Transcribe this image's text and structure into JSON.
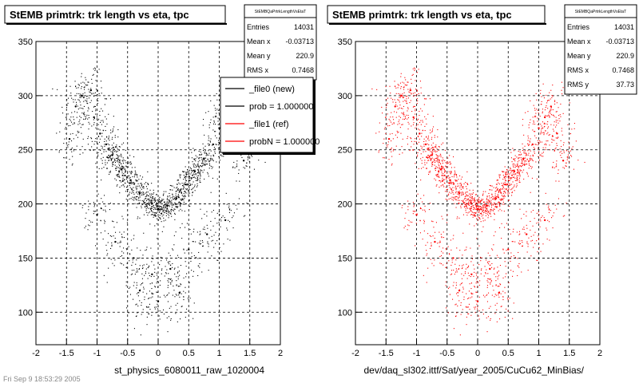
{
  "footer_stamp": "Fri Sep  9 18:53:29 2005",
  "chart_data": [
    {
      "type": "scatter",
      "title": "StEMB primtrk: trk length vs eta, tpc",
      "xlabel": "st_physics_6080011_raw_1020004",
      "ylabel": "",
      "xlim": [
        -2,
        2
      ],
      "ylim": [
        70,
        350
      ],
      "x_ticks": [
        "-2",
        "-1.5",
        "-1",
        "-0.5",
        "0",
        "0.5",
        "1",
        "1.5",
        "2"
      ],
      "y_ticks": [
        "100",
        "150",
        "200",
        "250",
        "300",
        "350"
      ],
      "grid": true,
      "marker_color": "#000000",
      "stats": {
        "name": "StEMBQaPrtrkLengthVsEtaT",
        "rows": [
          {
            "label": "Entries",
            "value": "14031"
          },
          {
            "label": "Mean x",
            "value": "-0.03713"
          },
          {
            "label": "Mean y",
            "value": "220.9"
          },
          {
            "label": "RMS x",
            "value": "0.7468"
          }
        ]
      },
      "legend": {
        "placement": "top-right",
        "entries": [
          {
            "text": "_file0 (new)",
            "color": "#000000"
          },
          {
            "text": "prob = 1.000000",
            "color": "#000000"
          },
          {
            "text": "_file1 (ref)",
            "color": "#ff0000"
          },
          {
            "text": "probN = 1.000000",
            "color": "#ff0000"
          }
        ]
      },
      "series": [
        {
          "name": "_file0 (new)",
          "color": "#000000",
          "points": [
            {
              "x": -1.45,
              "y": 260
            },
            {
              "x": -1.35,
              "y": 290
            },
            {
              "x": -1.25,
              "y": 300
            },
            {
              "x": -1.1,
              "y": 305
            },
            {
              "x": -1.05,
              "y": 280
            },
            {
              "x": -0.95,
              "y": 265
            },
            {
              "x": -0.85,
              "y": 255
            },
            {
              "x": -0.75,
              "y": 245
            },
            {
              "x": -0.6,
              "y": 232
            },
            {
              "x": -0.45,
              "y": 222
            },
            {
              "x": -0.3,
              "y": 210
            },
            {
              "x": -0.15,
              "y": 200
            },
            {
              "x": 0.0,
              "y": 195
            },
            {
              "x": 0.15,
              "y": 198
            },
            {
              "x": 0.3,
              "y": 205
            },
            {
              "x": 0.45,
              "y": 218
            },
            {
              "x": 0.6,
              "y": 230
            },
            {
              "x": 0.75,
              "y": 242
            },
            {
              "x": 0.9,
              "y": 255
            },
            {
              "x": 1.0,
              "y": 270
            },
            {
              "x": 1.1,
              "y": 280
            },
            {
              "x": 1.2,
              "y": 290
            },
            {
              "x": 1.3,
              "y": 265
            },
            {
              "x": 1.4,
              "y": 240
            },
            {
              "x": -0.7,
              "y": 165
            },
            {
              "x": -0.4,
              "y": 150
            },
            {
              "x": -0.1,
              "y": 135
            },
            {
              "x": 0.2,
              "y": 140
            },
            {
              "x": 0.5,
              "y": 158
            },
            {
              "x": 0.8,
              "y": 172
            },
            {
              "x": -1.0,
              "y": 190
            },
            {
              "x": 1.1,
              "y": 185
            },
            {
              "x": 0.0,
              "y": 110
            },
            {
              "x": -0.3,
              "y": 120
            },
            {
              "x": 0.35,
              "y": 118
            }
          ]
        }
      ]
    },
    {
      "type": "scatter",
      "title": "StEMB primtrk: trk length vs eta, tpc",
      "xlabel": "dev/daq_sl302.ittf/Sat/year_2005/CuCu62_MinBias/",
      "ylabel": "",
      "xlim": [
        -2,
        2
      ],
      "ylim": [
        70,
        350
      ],
      "x_ticks": [
        "-2",
        "-1.5",
        "-1",
        "-0.5",
        "0",
        "0.5",
        "1",
        "1.5",
        "2"
      ],
      "y_ticks": [
        "100",
        "150",
        "200",
        "250",
        "300",
        "350"
      ],
      "grid": true,
      "marker_color": "#ff0000",
      "stats": {
        "name": "StEMBQaPrtrkLengthVsEtaT",
        "rows": [
          {
            "label": "Entries",
            "value": "14031"
          },
          {
            "label": "Mean x",
            "value": "-0.03713"
          },
          {
            "label": "Mean y",
            "value": "220.9"
          },
          {
            "label": "RMS x",
            "value": "0.7468"
          },
          {
            "label": "RMS y",
            "value": "37.73"
          }
        ]
      },
      "series": [
        {
          "name": "_file1 (ref)",
          "color": "#ff0000",
          "points": [
            {
              "x": -1.45,
              "y": 260
            },
            {
              "x": -1.35,
              "y": 290
            },
            {
              "x": -1.25,
              "y": 300
            },
            {
              "x": -1.1,
              "y": 305
            },
            {
              "x": -1.05,
              "y": 280
            },
            {
              "x": -0.95,
              "y": 265
            },
            {
              "x": -0.85,
              "y": 255
            },
            {
              "x": -0.75,
              "y": 245
            },
            {
              "x": -0.6,
              "y": 232
            },
            {
              "x": -0.45,
              "y": 222
            },
            {
              "x": -0.3,
              "y": 210
            },
            {
              "x": -0.15,
              "y": 200
            },
            {
              "x": 0.0,
              "y": 195
            },
            {
              "x": 0.15,
              "y": 198
            },
            {
              "x": 0.3,
              "y": 205
            },
            {
              "x": 0.45,
              "y": 218
            },
            {
              "x": 0.6,
              "y": 230
            },
            {
              "x": 0.75,
              "y": 242
            },
            {
              "x": 0.9,
              "y": 255
            },
            {
              "x": 1.0,
              "y": 270
            },
            {
              "x": 1.1,
              "y": 280
            },
            {
              "x": 1.2,
              "y": 290
            },
            {
              "x": 1.3,
              "y": 265
            },
            {
              "x": 1.4,
              "y": 240
            },
            {
              "x": -0.7,
              "y": 165
            },
            {
              "x": -0.4,
              "y": 150
            },
            {
              "x": -0.1,
              "y": 135
            },
            {
              "x": 0.2,
              "y": 140
            },
            {
              "x": 0.5,
              "y": 158
            },
            {
              "x": 0.8,
              "y": 172
            },
            {
              "x": -1.0,
              "y": 190
            },
            {
              "x": 1.1,
              "y": 185
            },
            {
              "x": 0.0,
              "y": 110
            },
            {
              "x": -0.3,
              "y": 120
            },
            {
              "x": 0.35,
              "y": 118
            }
          ]
        }
      ]
    }
  ]
}
